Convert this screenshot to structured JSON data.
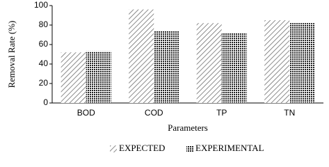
{
  "chart_data": {
    "type": "bar",
    "x_label": "Parameters",
    "y_label": "Removal Rate (%)",
    "categories": [
      "BOD",
      "COD",
      "TP",
      "TN"
    ],
    "series": [
      {
        "name": "EXPECTED",
        "color": "#6e6e6e",
        "values": [
          52,
          96,
          82,
          85
        ]
      },
      {
        "name": "EXPERIMENTAL",
        "color": "#222222",
        "values": [
          53,
          74,
          72,
          82
        ]
      }
    ],
    "ylim": [
      0,
      100
    ],
    "yticks": [
      0,
      20,
      40,
      60,
      80,
      100
    ],
    "grid": false,
    "legend": "bottom"
  }
}
